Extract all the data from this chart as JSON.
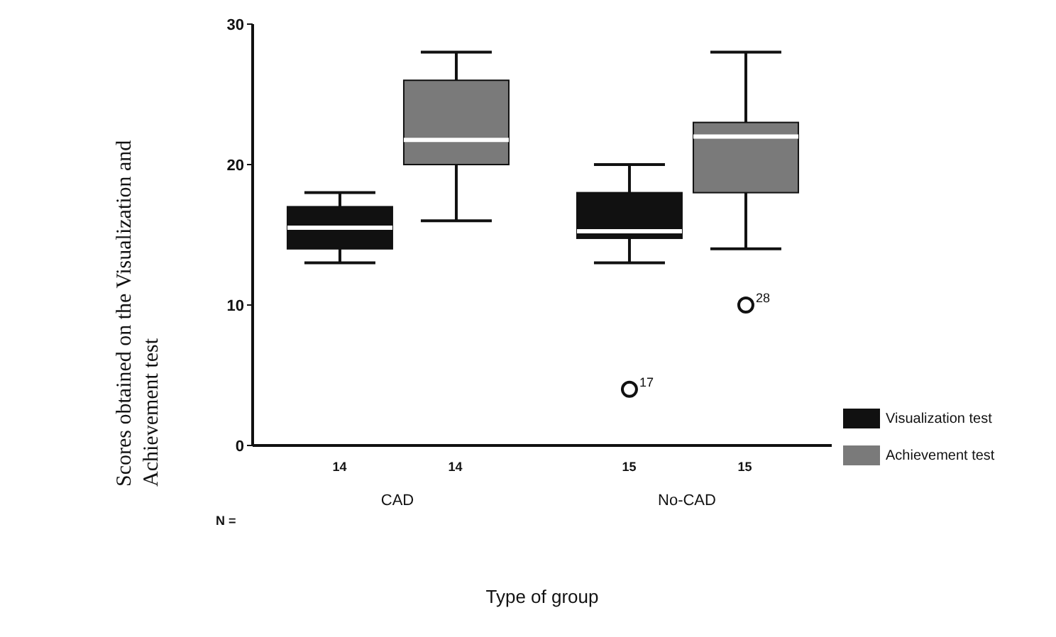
{
  "chart_data": {
    "type": "box",
    "xlabel": "Type of group",
    "ylabel": "Scores obtained on the Visualization and Achievement test",
    "categories": [
      "CAD",
      "No-CAD"
    ],
    "series": [
      {
        "name": "Visualization test",
        "color": "#111111",
        "boxes": [
          {
            "low": 13,
            "q1": 14,
            "median": 15.5,
            "q3": 17,
            "high": 18
          },
          {
            "low": 13,
            "q1": 14.75,
            "median": 15.25,
            "q3": 18,
            "high": 20,
            "outliers": [
              4
            ]
          }
        ]
      },
      {
        "name": "Achievement test",
        "color": "#7a7a7a",
        "boxes": [
          {
            "low": 16,
            "q1": 20,
            "median": 21.75,
            "q3": 26,
            "high": 28
          },
          {
            "low": 14,
            "q1": 18,
            "median": 22,
            "q3": 23,
            "high": 28,
            "outliers": [
              10
            ]
          }
        ]
      }
    ],
    "ylim": [
      0,
      30
    ],
    "yticks": [
      0,
      10,
      20,
      30
    ],
    "legend": "right",
    "grid": false,
    "annotations": [
      "N =",
      "14",
      "14",
      "15",
      "15",
      "17",
      "28"
    ]
  }
}
